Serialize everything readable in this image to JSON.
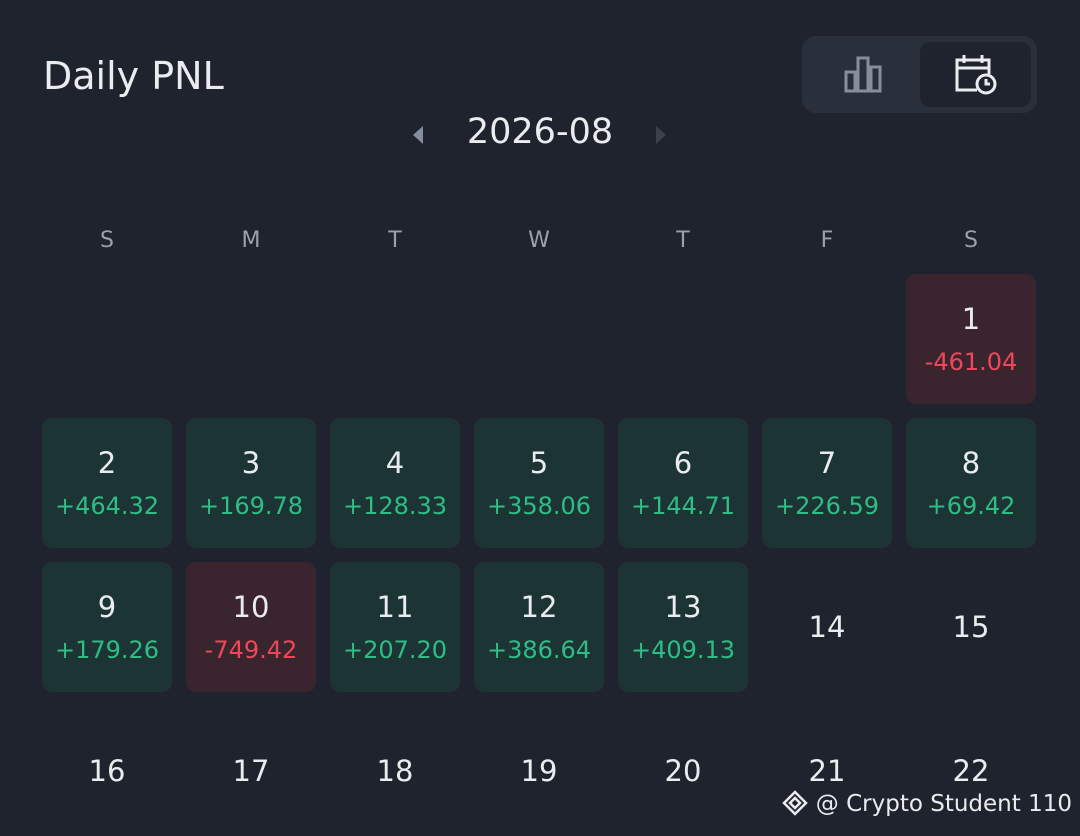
{
  "header": {
    "title": "Daily PNL",
    "month": "2026-08"
  },
  "weekdays": [
    "S",
    "M",
    "T",
    "W",
    "T",
    "F",
    "S"
  ],
  "weeks": [
    [
      null,
      null,
      null,
      null,
      null,
      null,
      {
        "day": "1",
        "pnl": "-461.04"
      }
    ],
    [
      {
        "day": "2",
        "pnl": "+464.32"
      },
      {
        "day": "3",
        "pnl": "+169.78"
      },
      {
        "day": "4",
        "pnl": "+128.33"
      },
      {
        "day": "5",
        "pnl": "+358.06"
      },
      {
        "day": "6",
        "pnl": "+144.71"
      },
      {
        "day": "7",
        "pnl": "+226.59"
      },
      {
        "day": "8",
        "pnl": "+69.42"
      }
    ],
    [
      {
        "day": "9",
        "pnl": "+179.26"
      },
      {
        "day": "10",
        "pnl": "-749.42"
      },
      {
        "day": "11",
        "pnl": "+207.20"
      },
      {
        "day": "12",
        "pnl": "+386.64"
      },
      {
        "day": "13",
        "pnl": "+409.13"
      },
      {
        "day": "14"
      },
      {
        "day": "15"
      }
    ],
    [
      {
        "day": "16"
      },
      {
        "day": "17"
      },
      {
        "day": "18"
      },
      {
        "day": "19"
      },
      {
        "day": "20"
      },
      {
        "day": "21"
      },
      {
        "day": "22"
      }
    ]
  ],
  "watermark": "@ Crypto Student 110"
}
